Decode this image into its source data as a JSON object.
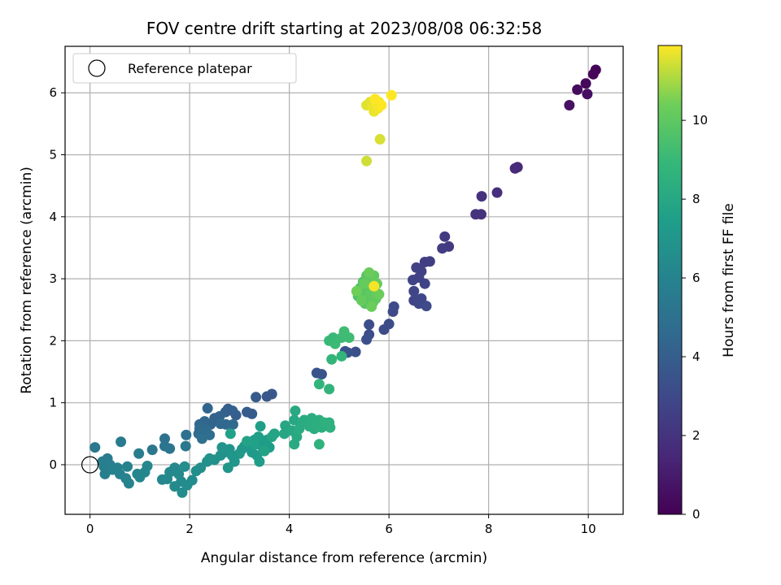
{
  "chart_data": {
    "type": "scatter",
    "title": "FOV centre drift starting at 2023/08/08 06:32:58",
    "xlabel": "Angular distance from reference (arcmin)",
    "ylabel": "Rotation from reference (arcmin)",
    "xlim": [
      -0.5,
      10.7
    ],
    "ylim": [
      -0.8,
      6.75
    ],
    "xticks": [
      "0",
      "2",
      "4",
      "6",
      "8",
      "10"
    ],
    "yticks": [
      "0",
      "1",
      "2",
      "3",
      "4",
      "5",
      "6"
    ],
    "grid": true,
    "legend": {
      "label": "Reference platepar",
      "placement": "top-left",
      "marker": "open-circle"
    },
    "colorbar": {
      "label": "Hours from first FF file",
      "range": [
        0,
        11.9
      ],
      "ticks": [
        "0",
        "2",
        "4",
        "6",
        "8",
        "10"
      ],
      "colormap": "viridis"
    },
    "reference_point": {
      "x": 0,
      "y": 0
    },
    "points": [
      {
        "x": 10.15,
        "y": 6.37,
        "h": 0.1
      },
      {
        "x": 10.1,
        "y": 6.3,
        "h": 0.2
      },
      {
        "x": 9.95,
        "y": 6.15,
        "h": 0.3
      },
      {
        "x": 9.78,
        "y": 6.05,
        "h": 0.4
      },
      {
        "x": 9.98,
        "y": 5.98,
        "h": 0.5
      },
      {
        "x": 9.62,
        "y": 5.8,
        "h": 0.6
      },
      {
        "x": 8.58,
        "y": 4.8,
        "h": 1.6
      },
      {
        "x": 8.53,
        "y": 4.78,
        "h": 1.6
      },
      {
        "x": 8.17,
        "y": 4.39,
        "h": 1.8
      },
      {
        "x": 7.86,
        "y": 4.33,
        "h": 1.9
      },
      {
        "x": 7.85,
        "y": 4.04,
        "h": 1.9
      },
      {
        "x": 7.74,
        "y": 4.04,
        "h": 2.0
      },
      {
        "x": 7.12,
        "y": 3.68,
        "h": 2.3
      },
      {
        "x": 7.2,
        "y": 3.52,
        "h": 2.3
      },
      {
        "x": 7.07,
        "y": 3.49,
        "h": 2.4
      },
      {
        "x": 6.82,
        "y": 3.28,
        "h": 2.5
      },
      {
        "x": 6.72,
        "y": 3.27,
        "h": 2.5
      },
      {
        "x": 6.55,
        "y": 3.18,
        "h": 2.6
      },
      {
        "x": 6.65,
        "y": 3.12,
        "h": 2.6
      },
      {
        "x": 6.6,
        "y": 3.02,
        "h": 2.7
      },
      {
        "x": 6.48,
        "y": 2.98,
        "h": 2.7
      },
      {
        "x": 6.72,
        "y": 2.92,
        "h": 2.7
      },
      {
        "x": 6.5,
        "y": 2.8,
        "h": 2.8
      },
      {
        "x": 6.5,
        "y": 2.65,
        "h": 2.8
      },
      {
        "x": 6.6,
        "y": 2.6,
        "h": 2.9
      },
      {
        "x": 6.6,
        "y": 2.65,
        "h": 2.9
      },
      {
        "x": 6.65,
        "y": 2.68,
        "h": 2.9
      },
      {
        "x": 6.75,
        "y": 2.56,
        "h": 3.0
      },
      {
        "x": 6.1,
        "y": 2.55,
        "h": 3.0
      },
      {
        "x": 6.08,
        "y": 2.47,
        "h": 3.0
      },
      {
        "x": 6.0,
        "y": 2.27,
        "h": 3.1
      },
      {
        "x": 5.9,
        "y": 2.18,
        "h": 3.1
      },
      {
        "x": 5.6,
        "y": 2.26,
        "h": 3.2
      },
      {
        "x": 5.6,
        "y": 2.1,
        "h": 3.2
      },
      {
        "x": 5.55,
        "y": 2.02,
        "h": 3.3
      },
      {
        "x": 5.33,
        "y": 1.82,
        "h": 3.3
      },
      {
        "x": 5.17,
        "y": 1.81,
        "h": 3.4
      },
      {
        "x": 5.12,
        "y": 1.83,
        "h": 3.4
      },
      {
        "x": 4.55,
        "y": 1.48,
        "h": 3.5
      },
      {
        "x": 4.65,
        "y": 1.46,
        "h": 3.5
      },
      {
        "x": 3.65,
        "y": 1.14,
        "h": 3.7
      },
      {
        "x": 3.55,
        "y": 1.1,
        "h": 3.7
      },
      {
        "x": 3.33,
        "y": 1.09,
        "h": 3.8
      },
      {
        "x": 3.15,
        "y": 0.85,
        "h": 3.9
      },
      {
        "x": 3.25,
        "y": 0.82,
        "h": 3.9
      },
      {
        "x": 2.93,
        "y": 0.8,
        "h": 4.0
      },
      {
        "x": 2.77,
        "y": 0.9,
        "h": 4.0
      },
      {
        "x": 2.72,
        "y": 0.85,
        "h": 4.1
      },
      {
        "x": 2.86,
        "y": 0.87,
        "h": 4.1
      },
      {
        "x": 2.6,
        "y": 0.78,
        "h": 4.2
      },
      {
        "x": 2.5,
        "y": 0.75,
        "h": 4.2
      },
      {
        "x": 2.42,
        "y": 0.65,
        "h": 4.3
      },
      {
        "x": 2.36,
        "y": 0.91,
        "h": 4.3
      },
      {
        "x": 2.3,
        "y": 0.7,
        "h": 4.4
      },
      {
        "x": 2.2,
        "y": 0.65,
        "h": 4.4
      },
      {
        "x": 2.62,
        "y": 0.66,
        "h": 4.5
      },
      {
        "x": 2.73,
        "y": 0.65,
        "h": 4.5
      },
      {
        "x": 2.87,
        "y": 0.65,
        "h": 4.6
      },
      {
        "x": 2.2,
        "y": 0.58,
        "h": 4.6
      },
      {
        "x": 2.32,
        "y": 0.56,
        "h": 4.7
      },
      {
        "x": 2.18,
        "y": 0.5,
        "h": 4.7
      },
      {
        "x": 2.4,
        "y": 0.48,
        "h": 4.8
      },
      {
        "x": 2.25,
        "y": 0.42,
        "h": 4.9
      },
      {
        "x": 1.93,
        "y": 0.48,
        "h": 5.0
      },
      {
        "x": 1.5,
        "y": 0.42,
        "h": 5.0
      },
      {
        "x": 1.5,
        "y": 0.3,
        "h": 5.1
      },
      {
        "x": 1.6,
        "y": 0.26,
        "h": 5.2
      },
      {
        "x": 1.25,
        "y": 0.24,
        "h": 5.3
      },
      {
        "x": 1.92,
        "y": 0.3,
        "h": 5.3
      },
      {
        "x": 0.1,
        "y": 0.28,
        "h": 5.4
      },
      {
        "x": 0.62,
        "y": 0.37,
        "h": 5.5
      },
      {
        "x": 0.98,
        "y": 0.18,
        "h": 5.6
      },
      {
        "x": 0.35,
        "y": 0.1,
        "h": 5.6
      },
      {
        "x": 0.25,
        "y": 0.05,
        "h": 5.7
      },
      {
        "x": 0.4,
        "y": 0.0,
        "h": 5.7
      },
      {
        "x": 0.28,
        "y": -0.03,
        "h": 5.8
      },
      {
        "x": 0.3,
        "y": -0.15,
        "h": 5.8
      },
      {
        "x": 0.45,
        "y": -0.08,
        "h": 5.9
      },
      {
        "x": 0.55,
        "y": -0.05,
        "h": 5.9
      },
      {
        "x": 0.6,
        "y": -0.15,
        "h": 5.9
      },
      {
        "x": 0.75,
        "y": -0.03,
        "h": 6.0
      },
      {
        "x": 0.72,
        "y": -0.22,
        "h": 6.0
      },
      {
        "x": 0.78,
        "y": -0.3,
        "h": 6.0
      },
      {
        "x": 0.95,
        "y": -0.15,
        "h": 6.1
      },
      {
        "x": 1.0,
        "y": -0.2,
        "h": 6.1
      },
      {
        "x": 1.1,
        "y": -0.12,
        "h": 6.1
      },
      {
        "x": 1.15,
        "y": -0.02,
        "h": 6.2
      },
      {
        "x": 1.45,
        "y": -0.24,
        "h": 6.2
      },
      {
        "x": 1.55,
        "y": -0.23,
        "h": 6.3
      },
      {
        "x": 1.6,
        "y": -0.12,
        "h": 6.3
      },
      {
        "x": 1.7,
        "y": -0.05,
        "h": 6.3
      },
      {
        "x": 1.78,
        "y": -0.15,
        "h": 6.4
      },
      {
        "x": 1.7,
        "y": -0.35,
        "h": 6.4
      },
      {
        "x": 1.83,
        "y": -0.27,
        "h": 6.4
      },
      {
        "x": 1.85,
        "y": -0.45,
        "h": 6.5
      },
      {
        "x": 1.95,
        "y": -0.33,
        "h": 6.5
      },
      {
        "x": 2.05,
        "y": -0.25,
        "h": 6.5
      },
      {
        "x": 1.9,
        "y": -0.03,
        "h": 6.6
      },
      {
        "x": 2.13,
        "y": -0.1,
        "h": 6.6
      },
      {
        "x": 2.22,
        "y": -0.05,
        "h": 6.6
      },
      {
        "x": 2.35,
        "y": 0.05,
        "h": 6.7
      },
      {
        "x": 2.5,
        "y": 0.08,
        "h": 6.7
      },
      {
        "x": 2.4,
        "y": 0.1,
        "h": 6.8
      },
      {
        "x": 2.62,
        "y": 0.15,
        "h": 6.8
      },
      {
        "x": 2.7,
        "y": 0.2,
        "h": 6.8
      },
      {
        "x": 2.65,
        "y": 0.28,
        "h": 6.9
      },
      {
        "x": 2.8,
        "y": 0.25,
        "h": 6.9
      },
      {
        "x": 2.85,
        "y": 0.15,
        "h": 7.0
      },
      {
        "x": 2.9,
        "y": 0.05,
        "h": 7.0
      },
      {
        "x": 2.77,
        "y": -0.05,
        "h": 7.0
      },
      {
        "x": 3.0,
        "y": 0.18,
        "h": 7.1
      },
      {
        "x": 3.05,
        "y": 0.25,
        "h": 7.1
      },
      {
        "x": 3.1,
        "y": 0.3,
        "h": 7.1
      },
      {
        "x": 3.2,
        "y": 0.35,
        "h": 7.2
      },
      {
        "x": 3.25,
        "y": 0.2,
        "h": 7.2
      },
      {
        "x": 3.3,
        "y": 0.4,
        "h": 7.2
      },
      {
        "x": 3.35,
        "y": 0.15,
        "h": 7.3
      },
      {
        "x": 3.45,
        "y": 0.3,
        "h": 7.3
      },
      {
        "x": 3.5,
        "y": 0.35,
        "h": 7.3
      },
      {
        "x": 3.55,
        "y": 0.4,
        "h": 7.4
      },
      {
        "x": 3.6,
        "y": 0.28,
        "h": 7.4
      },
      {
        "x": 3.4,
        "y": 0.05,
        "h": 7.4
      },
      {
        "x": 3.38,
        "y": 0.45,
        "h": 7.5
      },
      {
        "x": 3.42,
        "y": 0.62,
        "h": 7.5
      },
      {
        "x": 2.82,
        "y": 0.5,
        "h": 7.6
      },
      {
        "x": 3.3,
        "y": 0.32,
        "h": 7.6
      },
      {
        "x": 3.15,
        "y": 0.38,
        "h": 7.7
      },
      {
        "x": 3.5,
        "y": 0.22,
        "h": 7.7
      },
      {
        "x": 3.65,
        "y": 0.45,
        "h": 7.8
      },
      {
        "x": 3.7,
        "y": 0.5,
        "h": 7.8
      },
      {
        "x": 3.9,
        "y": 0.5,
        "h": 7.9
      },
      {
        "x": 3.92,
        "y": 0.63,
        "h": 7.9
      },
      {
        "x": 4.05,
        "y": 0.55,
        "h": 8.0
      },
      {
        "x": 4.1,
        "y": 0.72,
        "h": 8.0
      },
      {
        "x": 4.12,
        "y": 0.87,
        "h": 8.1
      },
      {
        "x": 4.15,
        "y": 0.45,
        "h": 8.1
      },
      {
        "x": 4.1,
        "y": 0.33,
        "h": 8.1
      },
      {
        "x": 4.2,
        "y": 0.58,
        "h": 8.2
      },
      {
        "x": 4.25,
        "y": 0.68,
        "h": 8.2
      },
      {
        "x": 4.3,
        "y": 0.72,
        "h": 8.2
      },
      {
        "x": 4.4,
        "y": 0.62,
        "h": 8.3
      },
      {
        "x": 4.45,
        "y": 0.75,
        "h": 8.3
      },
      {
        "x": 4.5,
        "y": 0.58,
        "h": 8.3
      },
      {
        "x": 4.55,
        "y": 0.65,
        "h": 8.4
      },
      {
        "x": 4.6,
        "y": 0.72,
        "h": 8.4
      },
      {
        "x": 4.65,
        "y": 0.6,
        "h": 8.4
      },
      {
        "x": 4.7,
        "y": 0.68,
        "h": 8.5
      },
      {
        "x": 4.8,
        "y": 0.68,
        "h": 8.5
      },
      {
        "x": 4.82,
        "y": 0.6,
        "h": 8.5
      },
      {
        "x": 4.6,
        "y": 0.33,
        "h": 8.6
      },
      {
        "x": 4.8,
        "y": 1.22,
        "h": 8.7
      },
      {
        "x": 4.6,
        "y": 1.3,
        "h": 8.7
      },
      {
        "x": 4.85,
        "y": 1.7,
        "h": 8.8
      },
      {
        "x": 5.05,
        "y": 1.75,
        "h": 8.8
      },
      {
        "x": 4.8,
        "y": 2.0,
        "h": 9.0
      },
      {
        "x": 4.88,
        "y": 2.05,
        "h": 9.0
      },
      {
        "x": 4.92,
        "y": 1.95,
        "h": 9.1
      },
      {
        "x": 5.05,
        "y": 2.05,
        "h": 9.1
      },
      {
        "x": 5.1,
        "y": 2.15,
        "h": 9.2
      },
      {
        "x": 5.2,
        "y": 2.05,
        "h": 9.2
      },
      {
        "x": 5.38,
        "y": 2.72,
        "h": 9.6
      },
      {
        "x": 5.42,
        "y": 2.85,
        "h": 9.7
      },
      {
        "x": 5.48,
        "y": 2.95,
        "h": 9.7
      },
      {
        "x": 5.5,
        "y": 2.78,
        "h": 9.8
      },
      {
        "x": 5.52,
        "y": 2.6,
        "h": 9.8
      },
      {
        "x": 5.55,
        "y": 3.05,
        "h": 9.8
      },
      {
        "x": 5.56,
        "y": 2.7,
        "h": 9.9
      },
      {
        "x": 5.58,
        "y": 2.88,
        "h": 9.9
      },
      {
        "x": 5.6,
        "y": 3.0,
        "h": 9.9
      },
      {
        "x": 5.62,
        "y": 2.75,
        "h": 10.0
      },
      {
        "x": 5.65,
        "y": 2.9,
        "h": 10.0
      },
      {
        "x": 5.68,
        "y": 2.62,
        "h": 10.0
      },
      {
        "x": 5.7,
        "y": 3.05,
        "h": 10.1
      },
      {
        "x": 5.72,
        "y": 2.8,
        "h": 10.1
      },
      {
        "x": 5.74,
        "y": 2.68,
        "h": 10.1
      },
      {
        "x": 5.76,
        "y": 2.92,
        "h": 10.2
      },
      {
        "x": 5.45,
        "y": 2.65,
        "h": 10.2
      },
      {
        "x": 5.5,
        "y": 2.92,
        "h": 10.2
      },
      {
        "x": 5.6,
        "y": 3.1,
        "h": 10.3
      },
      {
        "x": 5.65,
        "y": 2.55,
        "h": 10.3
      },
      {
        "x": 5.8,
        "y": 2.75,
        "h": 10.3
      },
      {
        "x": 5.35,
        "y": 2.8,
        "h": 10.4
      },
      {
        "x": 5.7,
        "y": 2.88,
        "h": 11.8
      },
      {
        "x": 5.55,
        "y": 4.9,
        "h": 11.4
      },
      {
        "x": 5.82,
        "y": 5.25,
        "h": 11.5
      },
      {
        "x": 5.55,
        "y": 5.8,
        "h": 11.6
      },
      {
        "x": 5.62,
        "y": 5.85,
        "h": 11.6
      },
      {
        "x": 5.68,
        "y": 5.78,
        "h": 11.7
      },
      {
        "x": 5.7,
        "y": 5.7,
        "h": 11.7
      },
      {
        "x": 5.75,
        "y": 5.82,
        "h": 11.8
      },
      {
        "x": 5.78,
        "y": 5.75,
        "h": 11.8
      },
      {
        "x": 5.8,
        "y": 5.85,
        "h": 11.8
      },
      {
        "x": 5.85,
        "y": 5.8,
        "h": 11.9
      },
      {
        "x": 5.72,
        "y": 5.9,
        "h": 11.9
      },
      {
        "x": 6.05,
        "y": 5.96,
        "h": 11.9
      }
    ]
  }
}
